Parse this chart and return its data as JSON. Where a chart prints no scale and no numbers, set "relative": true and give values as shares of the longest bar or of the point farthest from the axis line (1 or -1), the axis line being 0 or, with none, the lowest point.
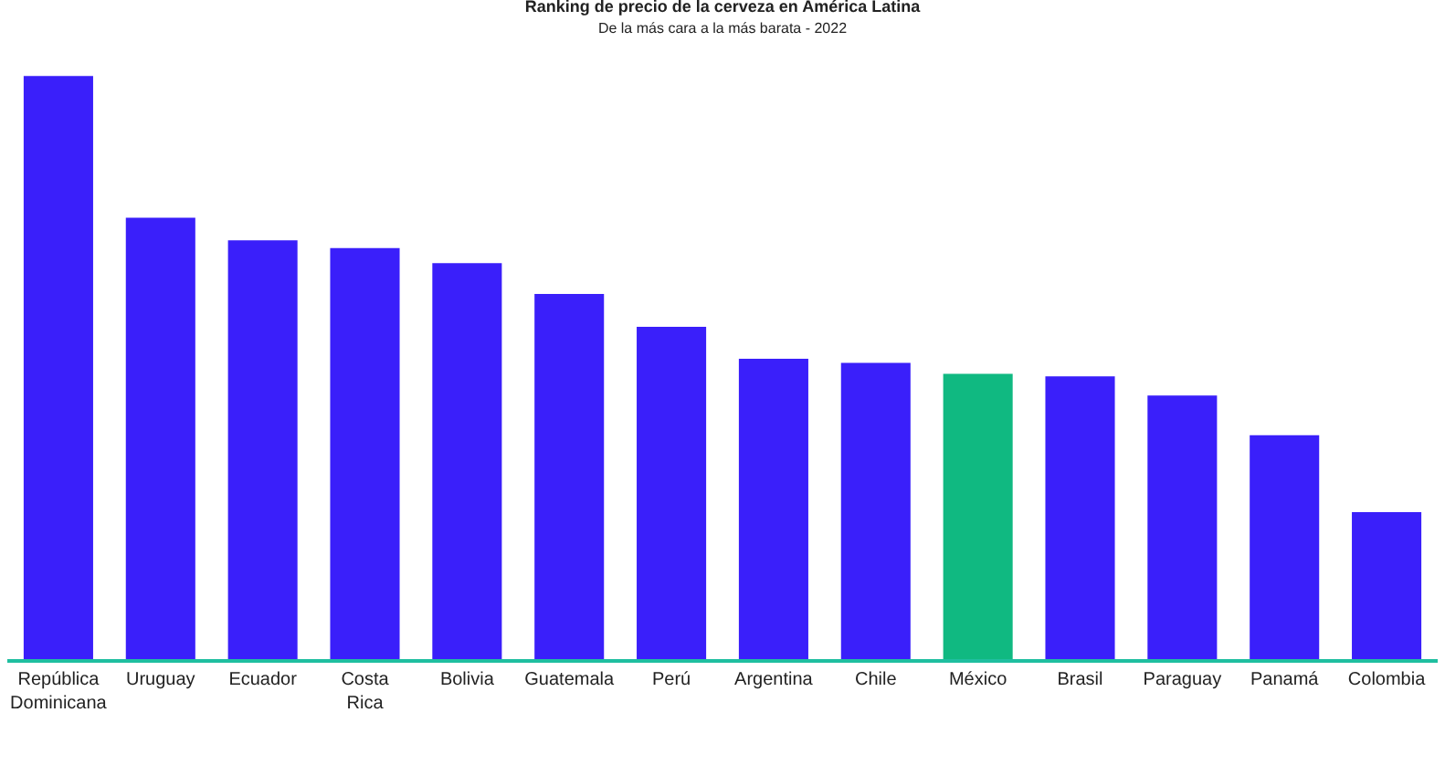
{
  "chart_data": {
    "type": "bar",
    "title": "Ranking de precio de la cerveza en América Latina",
    "subtitle": "De la más cara a la más barata - 2022",
    "relative": true,
    "categories": [
      "República Dominicana",
      "Uruguay",
      "Ecuador",
      "Costa Rica",
      "Bolivia",
      "Guatemala",
      "Perú",
      "Argentina",
      "Chile",
      "México",
      "Brasil",
      "Paraguay",
      "Panamá",
      "Colombia"
    ],
    "values": [
      1,
      0.757,
      0.718,
      0.705,
      0.679,
      0.626,
      0.57,
      0.515,
      0.508,
      0.489,
      0.485,
      0.452,
      0.384,
      0.252
    ],
    "colors": [
      "#3a1ffa",
      "#3a1ffa",
      "#3a1ffa",
      "#3a1ffa",
      "#3a1ffa",
      "#3a1ffa",
      "#3a1ffa",
      "#3a1ffa",
      "#3a1ffa",
      "#10b981",
      "#3a1ffa",
      "#3a1ffa",
      "#3a1ffa",
      "#3a1ffa"
    ],
    "grid": false,
    "legend": false
  }
}
